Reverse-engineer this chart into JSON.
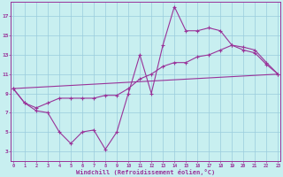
{
  "xlabel": "Windchill (Refroidissement éolien,°C)",
  "bg_color": "#c8eff0",
  "line_color": "#993399",
  "grid_color": "#99ccdd",
  "xlim": [
    -0.2,
    23.2
  ],
  "ylim": [
    2.0,
    18.5
  ],
  "xticks": [
    0,
    1,
    2,
    3,
    4,
    5,
    6,
    7,
    8,
    9,
    10,
    11,
    12,
    13,
    14,
    15,
    16,
    17,
    18,
    19,
    20,
    21,
    22,
    23
  ],
  "yticks": [
    3,
    5,
    7,
    9,
    11,
    13,
    15,
    17
  ],
  "line1_x": [
    0,
    1,
    2,
    3,
    4,
    5,
    6,
    7,
    8,
    9,
    10,
    11,
    12,
    13,
    14,
    15,
    16,
    17,
    18,
    19,
    20,
    21,
    22,
    23
  ],
  "line1_y": [
    9.5,
    8.0,
    7.2,
    7.0,
    5.0,
    3.8,
    5.0,
    5.2,
    3.2,
    5.0,
    9.0,
    13.0,
    9.0,
    14.0,
    18.0,
    15.5,
    15.5,
    15.8,
    15.5,
    14.0,
    13.5,
    13.2,
    12.0,
    11.0
  ],
  "line2_x": [
    0,
    1,
    2,
    3,
    4,
    5,
    6,
    7,
    8,
    9,
    10,
    11,
    12,
    13,
    14,
    15,
    16,
    17,
    18,
    19,
    20,
    21,
    22,
    23
  ],
  "line2_y": [
    9.5,
    8.0,
    7.5,
    8.0,
    8.5,
    8.5,
    8.5,
    8.5,
    8.8,
    8.8,
    9.5,
    10.5,
    11.0,
    11.8,
    12.2,
    12.2,
    12.8,
    13.0,
    13.5,
    14.0,
    13.8,
    13.5,
    12.2,
    11.0
  ],
  "line3_x": [
    0,
    23
  ],
  "line3_y": [
    9.5,
    11.0
  ]
}
